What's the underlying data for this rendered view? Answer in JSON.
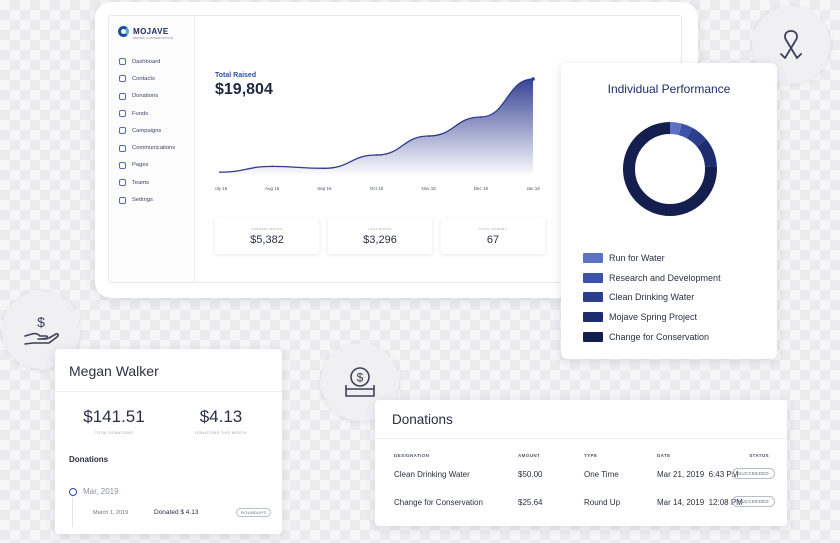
{
  "logo": {
    "name": "MOJAVE",
    "tagline": "WATER CONSERVATION"
  },
  "sidebar": {
    "items": [
      {
        "label": "Dashboard",
        "icon": "dashboard-icon"
      },
      {
        "label": "Contacts",
        "icon": "contacts-icon"
      },
      {
        "label": "Donations",
        "icon": "donations-icon"
      },
      {
        "label": "Funds",
        "icon": "funds-icon"
      },
      {
        "label": "Campaigns",
        "icon": "campaigns-icon"
      },
      {
        "label": "Communications",
        "icon": "bell-icon"
      },
      {
        "label": "Pages",
        "icon": "pages-icon"
      },
      {
        "label": "Teams",
        "icon": "teams-icon"
      },
      {
        "label": "Settings",
        "icon": "gear-icon"
      }
    ]
  },
  "dashboard": {
    "total_raised_label": "Total Raised",
    "total_raised_value": "$19,804",
    "stats": [
      {
        "label": "CURRENT MONTH",
        "value": "$5,382"
      },
      {
        "label": "LAST MONTH",
        "value": "$3,296"
      },
      {
        "label": "TOTAL DONORS",
        "value": "67"
      }
    ]
  },
  "chart_data": {
    "type": "area",
    "x": [
      "July 18",
      "Aug 18",
      "Sep 18",
      "Oct 18",
      "Nov 18",
      "Dec 18",
      "Jan 19"
    ],
    "values": [
      2,
      8,
      6,
      20,
      40,
      60,
      100
    ],
    "title": "",
    "xlabel": "",
    "ylabel": "",
    "ylim": [
      0,
      100
    ],
    "grid": false,
    "color": "#2e3a8f"
  },
  "performance": {
    "title": "Individual Performance",
    "segments": [
      {
        "label": "Run for Water",
        "color": "#5b72c4",
        "value": 4
      },
      {
        "label": "Research and Development",
        "color": "#3c52a8",
        "value": 4
      },
      {
        "label": "Clean Drinking Water",
        "color": "#2a3e8c",
        "value": 6
      },
      {
        "label": "Mojave Spring Project",
        "color": "#1d2c6e",
        "value": 10
      },
      {
        "label": "Change for Conservation",
        "color": "#141e4f",
        "value": 76
      }
    ]
  },
  "profile": {
    "name": "Megan Walker",
    "total_donations_value": "$141.51",
    "total_donations_label": "TOTAL DONATIONS",
    "month_donations_value": "$4.13",
    "month_donations_label": "DONATIONS THIS MONTH",
    "section_title": "Donations",
    "timeline": {
      "month": "Mar, 2019",
      "date": "March 1, 2019",
      "text": "Donated $ 4.13",
      "tag": "ROUNDUPS"
    }
  },
  "donations": {
    "title": "Donations",
    "columns": [
      "DESIGNATION",
      "AMOUNT",
      "TYPE",
      "DATE",
      "STATUS"
    ],
    "rows": [
      {
        "designation": "Clean Drinking Water",
        "amount": "$50.00",
        "type": "One Time",
        "date": "Mar 21, 2019  6:43 PM",
        "status": "SUCCEEDED"
      },
      {
        "designation": "Change for Conservation",
        "amount": "$25.64",
        "type": "Round Up",
        "date": "Mar 14, 2019  12:08 PM",
        "status": "SUCCEEDED"
      }
    ]
  },
  "badges": {
    "ribbon": "ribbon-icon",
    "hand_dollar": "hand-dollar-icon",
    "donation_box": "donation-box-icon"
  }
}
